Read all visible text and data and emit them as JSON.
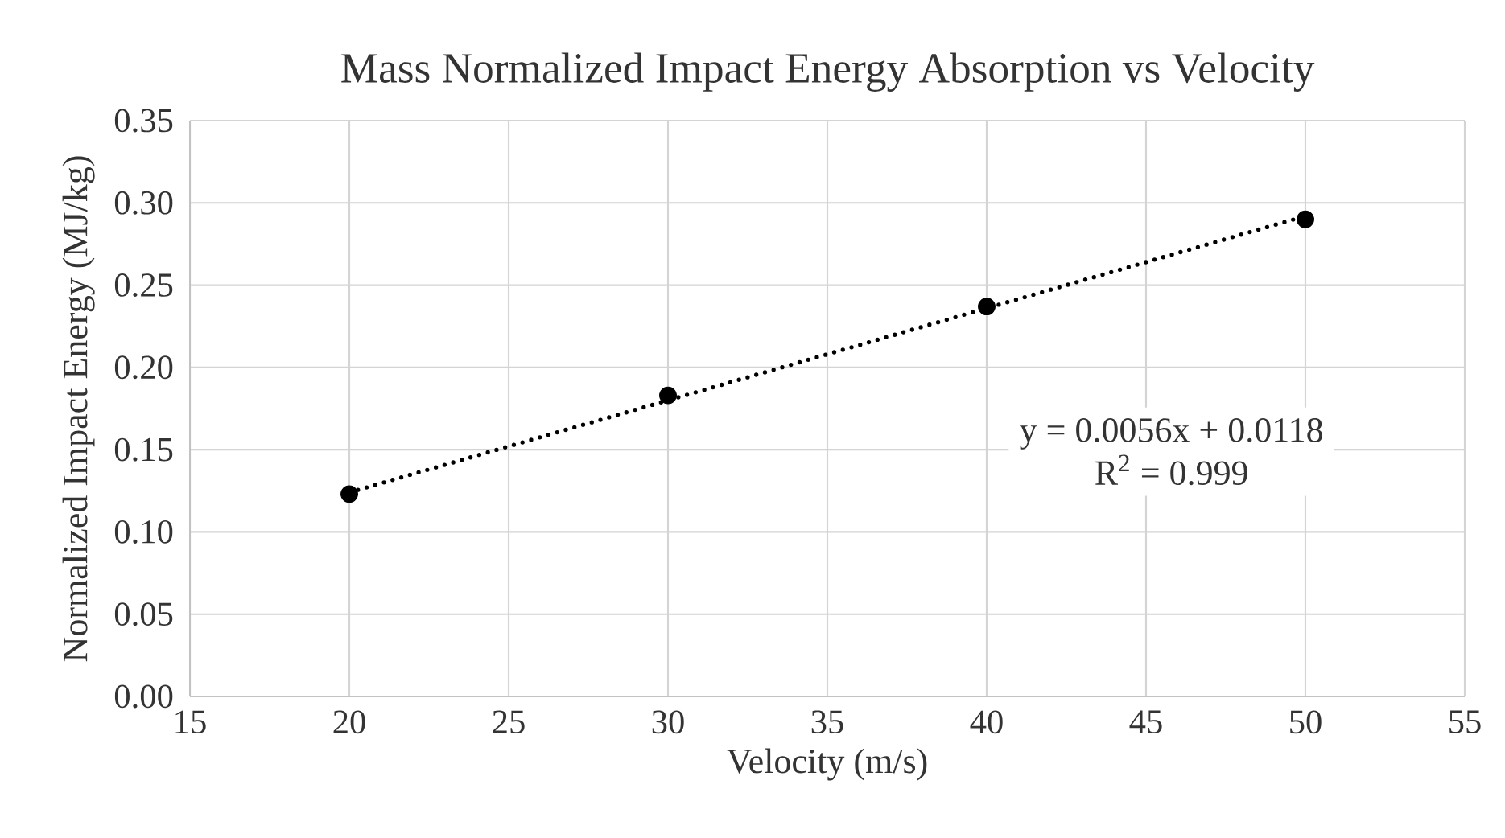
{
  "chart_data": {
    "type": "scatter",
    "title": "Mass Normalized Impact Energy Absorption vs Velocity",
    "xlabel": "Velocity (m/s)",
    "ylabel": "Normalized Impact Energy (MJ/kg)",
    "x": [
      20,
      30,
      40,
      50
    ],
    "series": [
      {
        "color": "#000000",
        "marker": "circle",
        "values": [
          0.123,
          0.183,
          0.237,
          0.29
        ]
      },
      {
        "type": "line",
        "color": "#000000",
        "marker": "none",
        "line_style": "dotted",
        "x": [
          20,
          50
        ],
        "values": [
          0.124,
          0.292
        ]
      }
    ],
    "xlim": [
      15,
      55
    ],
    "xticks": [
      15,
      20,
      25,
      30,
      35,
      40,
      45,
      50,
      55
    ],
    "ylim": [
      0,
      0.35
    ],
    "yticks": [
      {
        "value": 0,
        "label": "0.00"
      },
      0.05,
      {
        "value": 0.1,
        "label": "0.10"
      },
      0.15,
      {
        "value": 0.2,
        "label": "0.20"
      },
      0.25,
      {
        "value": 0.3,
        "label": "0.30"
      },
      0.35
    ],
    "grid": true,
    "annotations": [
      "y = 0.0056x + 0.0118",
      "R$^{2}$ = 0.999"
    ]
  }
}
